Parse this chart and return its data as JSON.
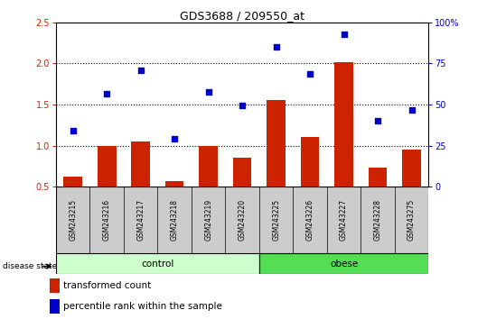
{
  "title": "GDS3688 / 209550_at",
  "categories": [
    "GSM243215",
    "GSM243216",
    "GSM243217",
    "GSM243218",
    "GSM243219",
    "GSM243220",
    "GSM243225",
    "GSM243226",
    "GSM243227",
    "GSM243228",
    "GSM243275"
  ],
  "bar_values": [
    0.62,
    1.0,
    1.05,
    0.57,
    1.0,
    0.85,
    1.55,
    1.1,
    2.02,
    0.73,
    0.95
  ],
  "scatter_values": [
    1.18,
    1.63,
    1.92,
    1.08,
    1.65,
    1.49,
    2.2,
    1.87,
    2.35,
    1.3,
    1.43
  ],
  "bar_color": "#cc2200",
  "scatter_color": "#0000cc",
  "ylim": [
    0.5,
    2.5
  ],
  "yticks_left": [
    0.5,
    1.0,
    1.5,
    2.0,
    2.5
  ],
  "yticks_right_pct": [
    0,
    25,
    50,
    75,
    100
  ],
  "ytick_labels_right": [
    "0",
    "25",
    "50",
    "75",
    "100%"
  ],
  "dotted_lines": [
    1.0,
    1.5,
    2.0
  ],
  "n_control": 6,
  "control_label": "control",
  "obese_label": "obese",
  "disease_state_label": "disease state",
  "legend_bar_label": "transformed count",
  "legend_scatter_label": "percentile rank within the sample",
  "control_color": "#ccffcc",
  "obese_color": "#55dd55",
  "xticklabel_area_color": "#cccccc",
  "title_fontsize": 9,
  "tick_fontsize": 7,
  "label_fontsize": 7,
  "legend_fontsize": 7.5
}
